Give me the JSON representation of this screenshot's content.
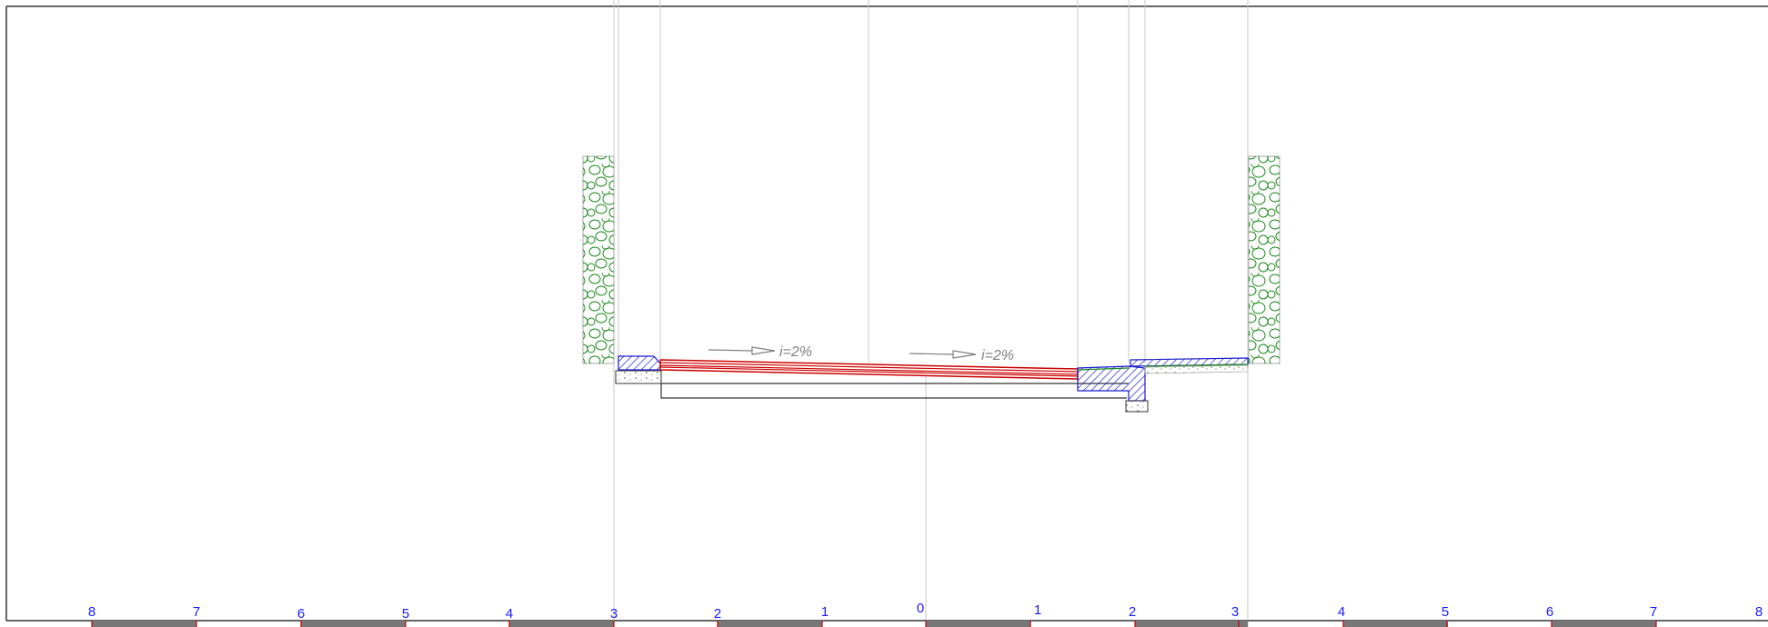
{
  "drawing": {
    "slope_left": "i=2%",
    "slope_right": "i=2%"
  },
  "scale_bar": {
    "left_labels": [
      "8",
      "7",
      "6",
      "5",
      "4",
      "3",
      "2",
      "1"
    ],
    "zero_label": "0",
    "right_labels": [
      "1",
      "2",
      "3",
      "4",
      "5",
      "6",
      "7",
      "8"
    ]
  },
  "colors": {
    "frame": "#333333",
    "guide": "#c8c8c8",
    "hedge": "#1a8a1a",
    "curb_hatch": "#1a1acc",
    "pavement_stripe": "#cc0000",
    "scale_label": "#1a1aff",
    "scale_segment": "#777777",
    "scale_tick": "#cc0000",
    "slope_text": "#808080"
  }
}
